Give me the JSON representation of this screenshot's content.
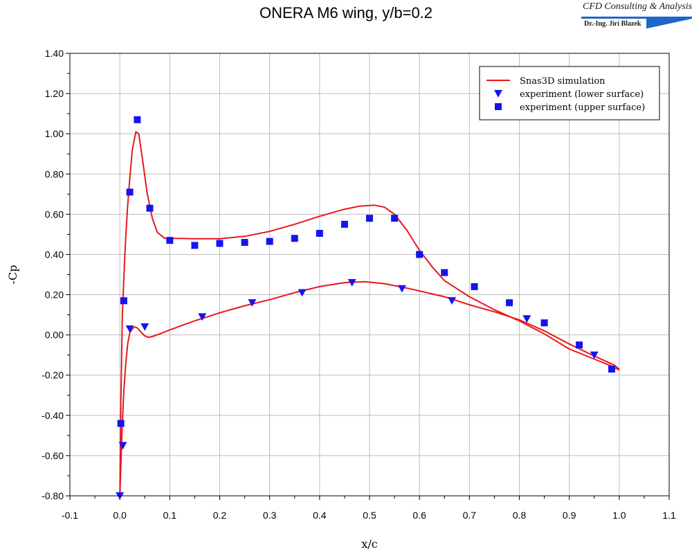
{
  "header": {
    "title": "ONERA M6 wing, y/b=0.2",
    "logo_main": "CFD Consulting & Analysis",
    "logo_sub": "Dr.-Ing. Jiri Blazek"
  },
  "chart_data": {
    "type": "scatter",
    "title": "ONERA M6 wing, y/b=0.2",
    "xlabel": "x/c",
    "ylabel": "-Cp",
    "xlim": [
      -0.1,
      1.1
    ],
    "ylim": [
      -0.8,
      1.4
    ],
    "x_ticks": [
      "-0.1",
      "0.0",
      "0.1",
      "0.2",
      "0.3",
      "0.4",
      "0.5",
      "0.6",
      "0.7",
      "0.8",
      "0.9",
      "1.0",
      "1.1"
    ],
    "y_ticks": [
      "-0.80",
      "-0.60",
      "-0.40",
      "-0.20",
      "0.00",
      "0.20",
      "0.40",
      "0.60",
      "0.80",
      "1.00",
      "1.20",
      "1.40"
    ],
    "grid": true,
    "legend_position": "top-right",
    "series": [
      {
        "name": "Snas3D simulation",
        "kind": "line",
        "color": "#e8161b",
        "segments": [
          [
            [
              0.0,
              -0.8
            ],
            [
              0.002,
              -0.35
            ],
            [
              0.005,
              0.1
            ],
            [
              0.01,
              0.4
            ],
            [
              0.015,
              0.62
            ],
            [
              0.02,
              0.78
            ],
            [
              0.025,
              0.92
            ],
            [
              0.032,
              1.01
            ],
            [
              0.038,
              1.0
            ],
            [
              0.045,
              0.88
            ],
            [
              0.055,
              0.7
            ],
            [
              0.065,
              0.58
            ],
            [
              0.075,
              0.51
            ],
            [
              0.09,
              0.48
            ],
            [
              0.12,
              0.48
            ],
            [
              0.15,
              0.478
            ],
            [
              0.2,
              0.478
            ],
            [
              0.25,
              0.49
            ],
            [
              0.3,
              0.515
            ],
            [
              0.35,
              0.55
            ],
            [
              0.4,
              0.59
            ],
            [
              0.45,
              0.625
            ],
            [
              0.48,
              0.64
            ],
            [
              0.51,
              0.645
            ],
            [
              0.53,
              0.635
            ],
            [
              0.55,
              0.6
            ],
            [
              0.575,
              0.52
            ],
            [
              0.6,
              0.42
            ],
            [
              0.625,
              0.34
            ],
            [
              0.65,
              0.27
            ],
            [
              0.7,
              0.19
            ],
            [
              0.75,
              0.125
            ],
            [
              0.8,
              0.07
            ],
            [
              0.85,
              0.005
            ],
            [
              0.9,
              -0.07
            ],
            [
              0.95,
              -0.12
            ],
            [
              0.985,
              -0.155
            ],
            [
              1.0,
              -0.175
            ]
          ],
          [
            [
              0.0,
              -0.8
            ],
            [
              0.004,
              -0.5
            ],
            [
              0.008,
              -0.28
            ],
            [
              0.012,
              -0.14
            ],
            [
              0.016,
              -0.04
            ],
            [
              0.02,
              0.01
            ],
            [
              0.025,
              0.03
            ],
            [
              0.03,
              0.04
            ],
            [
              0.035,
              0.035
            ],
            [
              0.042,
              0.015
            ],
            [
              0.05,
              -0.005
            ],
            [
              0.057,
              -0.012
            ],
            [
              0.065,
              -0.008
            ],
            [
              0.08,
              0.005
            ],
            [
              0.1,
              0.025
            ],
            [
              0.15,
              0.07
            ],
            [
              0.2,
              0.11
            ],
            [
              0.25,
              0.145
            ],
            [
              0.3,
              0.175
            ],
            [
              0.35,
              0.21
            ],
            [
              0.4,
              0.24
            ],
            [
              0.45,
              0.26
            ],
            [
              0.49,
              0.265
            ],
            [
              0.53,
              0.255
            ],
            [
              0.58,
              0.23
            ],
            [
              0.65,
              0.19
            ],
            [
              0.7,
              0.15
            ],
            [
              0.75,
              0.115
            ],
            [
              0.8,
              0.075
            ],
            [
              0.85,
              0.02
            ],
            [
              0.9,
              -0.045
            ],
            [
              0.95,
              -0.105
            ],
            [
              0.99,
              -0.15
            ],
            [
              1.0,
              -0.17
            ]
          ]
        ]
      },
      {
        "name": "experiment (lower surface)",
        "kind": "marker",
        "marker": "triangle-down",
        "color": "#1414f0",
        "x": [
          0.0,
          0.006,
          0.02,
          0.05,
          0.165,
          0.265,
          0.365,
          0.465,
          0.565,
          0.665,
          0.815,
          0.95
        ],
        "y": [
          -0.8,
          -0.55,
          0.03,
          0.04,
          0.09,
          0.16,
          0.21,
          0.26,
          0.23,
          0.17,
          0.08,
          -0.1
        ]
      },
      {
        "name": "experiment (upper surface)",
        "kind": "marker",
        "marker": "square",
        "color": "#1414f0",
        "x": [
          0.002,
          0.008,
          0.02,
          0.035,
          0.06,
          0.1,
          0.15,
          0.2,
          0.25,
          0.3,
          0.35,
          0.4,
          0.45,
          0.5,
          0.55,
          0.6,
          0.65,
          0.71,
          0.78,
          0.85,
          0.92,
          0.985
        ],
        "y": [
          -0.44,
          0.17,
          0.71,
          1.07,
          0.63,
          0.47,
          0.445,
          0.455,
          0.46,
          0.465,
          0.48,
          0.505,
          0.55,
          0.58,
          0.58,
          0.4,
          0.31,
          0.24,
          0.16,
          0.06,
          -0.05,
          -0.17
        ]
      }
    ]
  }
}
